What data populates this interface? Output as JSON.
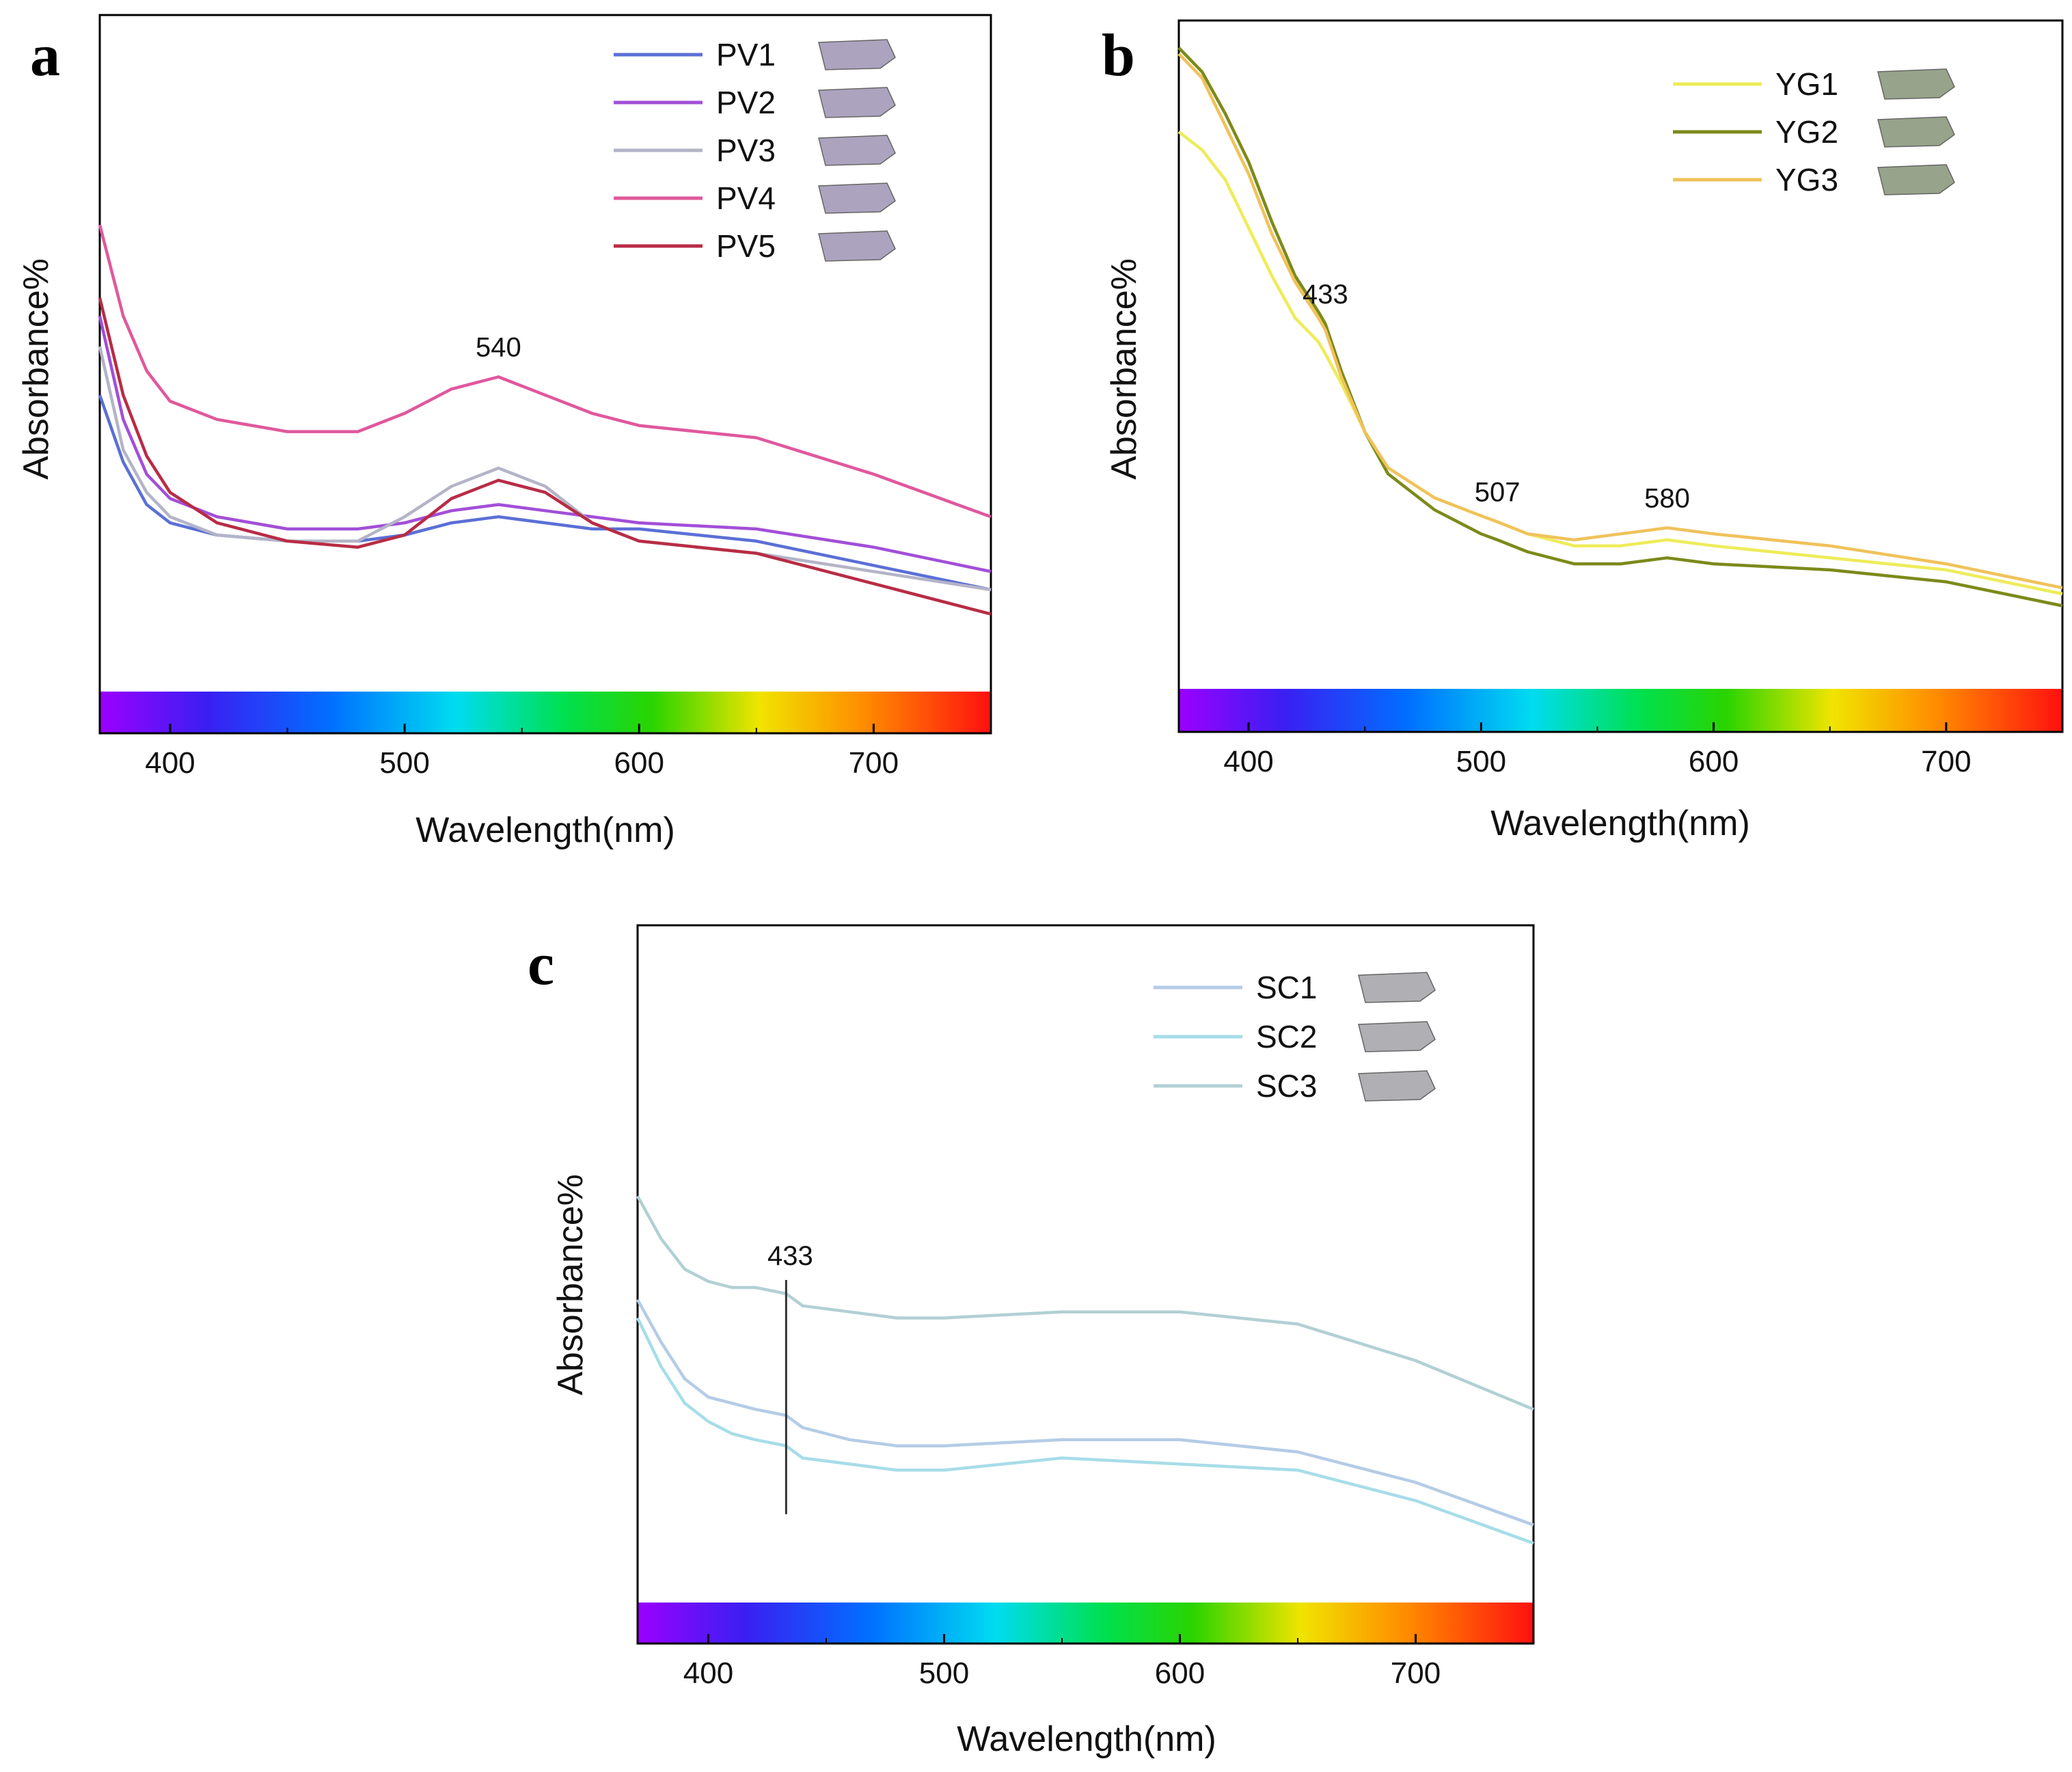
{
  "chart_data": [
    {
      "panel": "a",
      "type": "line",
      "xlabel": "Wavelength(nm)",
      "ylabel": "Absorbance%",
      "xlim": [
        370,
        750
      ],
      "ylim": [
        0,
        100
      ],
      "xticks": [
        400,
        500,
        600,
        700
      ],
      "grid": false,
      "legend_position": "top-right",
      "series": [
        {
          "name": "PV1",
          "color": "#5b6fd6",
          "x": [
            370,
            380,
            390,
            400,
            420,
            450,
            480,
            500,
            520,
            540,
            560,
            580,
            600,
            650,
            700,
            750
          ],
          "y": [
            42,
            31,
            24,
            21,
            19,
            18,
            18,
            19,
            21,
            22,
            21,
            20,
            20,
            18,
            14,
            10
          ]
        },
        {
          "name": "PV2",
          "color": "#a24fd8",
          "x": [
            370,
            380,
            390,
            400,
            420,
            450,
            480,
            500,
            520,
            540,
            560,
            580,
            600,
            650,
            700,
            750
          ],
          "y": [
            55,
            38,
            29,
            25,
            22,
            20,
            20,
            21,
            23,
            24,
            23,
            22,
            21,
            20,
            17,
            13
          ]
        },
        {
          "name": "PV3",
          "color": "#b4b4c8",
          "x": [
            370,
            380,
            390,
            400,
            420,
            450,
            480,
            500,
            520,
            540,
            560,
            580,
            600,
            650,
            700,
            750
          ],
          "y": [
            50,
            33,
            26,
            22,
            19,
            18,
            18,
            22,
            27,
            30,
            27,
            21,
            18,
            16,
            13,
            10
          ]
        },
        {
          "name": "PV4",
          "color": "#e0589c",
          "x": [
            370,
            380,
            390,
            400,
            420,
            450,
            480,
            500,
            520,
            540,
            560,
            580,
            600,
            650,
            700,
            750
          ],
          "y": [
            70,
            55,
            46,
            41,
            38,
            36,
            36,
            39,
            43,
            45,
            42,
            39,
            37,
            35,
            29,
            22
          ]
        },
        {
          "name": "PV5",
          "color": "#b82c45",
          "x": [
            370,
            380,
            390,
            400,
            420,
            450,
            480,
            500,
            520,
            540,
            560,
            580,
            600,
            650,
            700,
            750
          ],
          "y": [
            58,
            42,
            32,
            26,
            21,
            18,
            17,
            19,
            25,
            28,
            26,
            21,
            18,
            16,
            11,
            6
          ]
        }
      ],
      "annotations": [
        {
          "x": 540,
          "text": "540"
        }
      ]
    },
    {
      "panel": "b",
      "type": "line",
      "xlabel": "Wavelength(nm)",
      "ylabel": "Absorbance%",
      "xlim": [
        370,
        750
      ],
      "ylim": [
        0,
        100
      ],
      "xticks": [
        400,
        500,
        600,
        700
      ],
      "grid": false,
      "legend_position": "top-right",
      "series": [
        {
          "name": "YG1",
          "color": "#eeec5a",
          "x": [
            370,
            380,
            390,
            400,
            410,
            420,
            430,
            433,
            440,
            450,
            460,
            480,
            500,
            507,
            520,
            540,
            560,
            580,
            600,
            650,
            700,
            750
          ],
          "y": [
            86,
            83,
            78,
            70,
            62,
            55,
            51,
            49,
            44,
            36,
            30,
            25,
            22,
            21,
            19,
            17,
            17,
            18,
            17,
            15,
            13,
            9
          ]
        },
        {
          "name": "YG2",
          "color": "#7c8a1a",
          "x": [
            370,
            380,
            390,
            400,
            410,
            420,
            430,
            433,
            440,
            450,
            460,
            480,
            500,
            507,
            520,
            540,
            560,
            580,
            600,
            650,
            700,
            750
          ],
          "y": [
            100,
            96,
            89,
            81,
            71,
            62,
            56,
            54,
            46,
            36,
            29,
            23,
            19,
            18,
            16,
            14,
            14,
            15,
            14,
            13,
            11,
            7
          ]
        },
        {
          "name": "YG3",
          "color": "#f0c25a",
          "x": [
            370,
            380,
            390,
            400,
            410,
            420,
            430,
            433,
            440,
            450,
            460,
            480,
            500,
            507,
            520,
            540,
            560,
            580,
            600,
            650,
            700,
            750
          ],
          "y": [
            99,
            95,
            87,
            79,
            69,
            61,
            55,
            53,
            45,
            36,
            30,
            25,
            22,
            21,
            19,
            18,
            19,
            20,
            19,
            17,
            14,
            10
          ]
        }
      ],
      "annotations": [
        {
          "x": 433,
          "text": "433"
        },
        {
          "x": 507,
          "text": "507"
        },
        {
          "x": 580,
          "text": "580"
        }
      ]
    },
    {
      "panel": "c",
      "type": "line",
      "xlabel": "Wavelength(nm)",
      "ylabel": "Absorbance%",
      "xlim": [
        370,
        750
      ],
      "ylim": [
        0,
        100
      ],
      "xticks": [
        400,
        500,
        600,
        700
      ],
      "grid": false,
      "legend_position": "top-right",
      "series": [
        {
          "name": "SC1",
          "color": "#b4cce6",
          "x": [
            370,
            380,
            390,
            400,
            410,
            420,
            433,
            440,
            460,
            480,
            500,
            550,
            600,
            650,
            700,
            750
          ],
          "y": [
            43,
            36,
            30,
            27,
            26,
            25,
            24,
            22,
            20,
            19,
            19,
            20,
            20,
            18,
            13,
            6
          ]
        },
        {
          "name": "SC2",
          "color": "#a6dde8",
          "x": [
            370,
            380,
            390,
            400,
            410,
            420,
            433,
            440,
            460,
            480,
            500,
            550,
            600,
            650,
            700,
            750
          ],
          "y": [
            40,
            32,
            26,
            23,
            21,
            20,
            19,
            17,
            16,
            15,
            15,
            17,
            16,
            15,
            10,
            3
          ]
        },
        {
          "name": "SC3",
          "color": "#b2d0d4",
          "x": [
            370,
            380,
            390,
            400,
            410,
            420,
            433,
            440,
            460,
            480,
            500,
            550,
            600,
            650,
            700,
            750
          ],
          "y": [
            60,
            53,
            48,
            46,
            45,
            45,
            44,
            42,
            41,
            40,
            40,
            41,
            41,
            39,
            33,
            25
          ]
        }
      ],
      "annotations": [
        {
          "x": 433,
          "text": "433",
          "marker": "vertical-line"
        }
      ]
    }
  ]
}
